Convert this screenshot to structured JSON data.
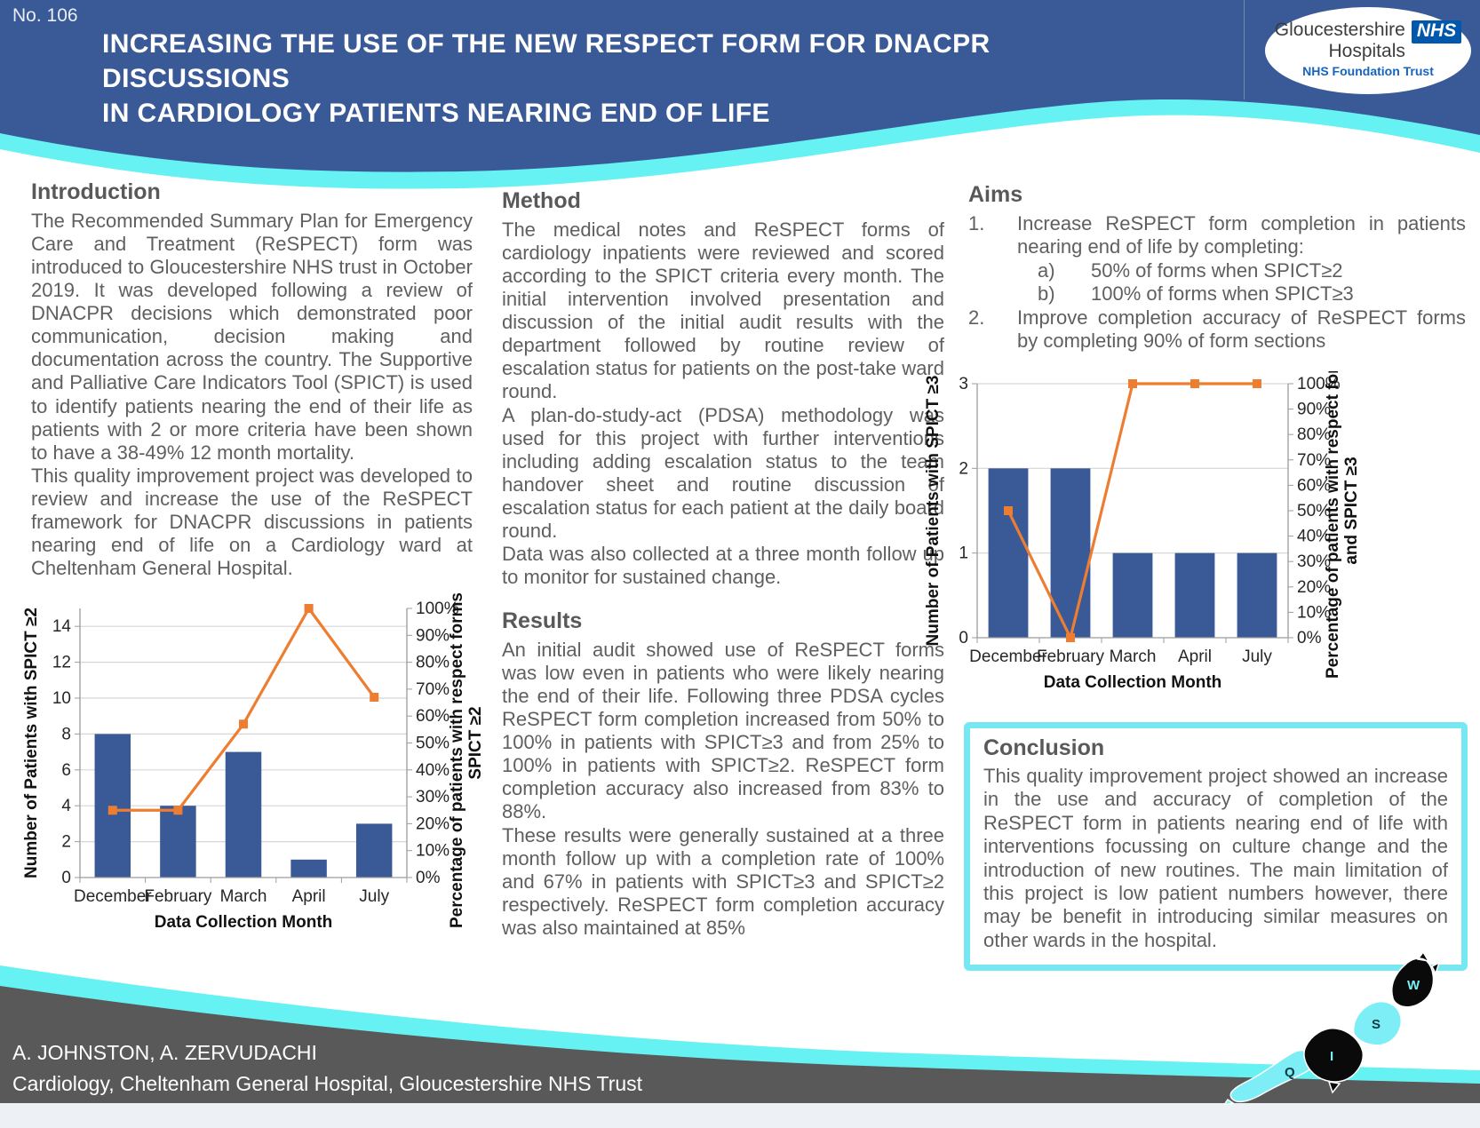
{
  "header": {
    "number": "No. 106",
    "title_line1": "INCREASING THE USE OF THE NEW RESPECT FORM FOR DNACPR DISCUSSIONS",
    "title_line2": "IN CARDIOLOGY PATIENTS NEARING END OF LIFE",
    "bg_color": "#3a5a97",
    "wave_color": "#66f1f3"
  },
  "logo": {
    "org_line1": "Gloucestershire",
    "org_line2": "Hospitals",
    "nhs": "NHS",
    "sub": "NHS Foundation Trust"
  },
  "intro": {
    "heading": "Introduction",
    "p1": "The Recommended Summary Plan for Emergency Care and Treatment (ReSPECT) form was introduced to Gloucestershire NHS trust in October 2019. It was developed following a review of DNACPR decisions which demonstrated poor communication, decision making and documentation across the country. The Supportive and Palliative Care Indicators Tool (SPICT) is used to identify patients nearing the end of their life as patients with 2 or more criteria have been shown to have a 38-49% 12 month mortality.",
    "p2": "This quality improvement project was developed to review and increase the use of the ReSPECT framework for DNACPR discussions in patients nearing end of life on a Cardiology ward at Cheltenham General Hospital."
  },
  "method": {
    "heading": "Method",
    "p1": "The medical notes and ReSPECT forms of cardiology inpatients were reviewed and scored according to the SPICT criteria every month. The initial intervention involved presentation and discussion of the initial audit results with the department followed by routine review of escalation status for patients on the post-take ward round.",
    "p2": "A plan-do-study-act (PDSA) methodology was used for this project with further interventions including adding escalation status to the team handover sheet and routine discussion of escalation status for each patient at the daily board round.",
    "p3": "Data was also collected at a three month follow up to monitor for sustained change."
  },
  "results": {
    "heading": "Results",
    "p1": "An initial audit showed use of ReSPECT forms was low even in patients who were likely nearing the end of their life. Following three PDSA cycles ReSPECT form completion increased from 50% to 100% in patients with SPICT≥3 and from 25% to 100% in patients with SPICT≥2. ReSPECT form completion accuracy also increased from 83% to 88%.",
    "p2": "These results were generally sustained at a three month follow up with a completion rate of 100% and 67% in patients with SPICT≥3 and SPICT≥2 respectively. ReSPECT form completion accuracy was also maintained at 85%"
  },
  "aims": {
    "heading": "Aims",
    "items": [
      {
        "num": "1.",
        "text": "Increase ReSPECT form completion in patients nearing end of life by completing:",
        "subs": [
          {
            "num": "a)",
            "text": "50% of forms when SPICT≥2"
          },
          {
            "num": "b)",
            "text": "100% of forms when SPICT≥3"
          }
        ]
      },
      {
        "num": "2.",
        "text": "Improve completion accuracy of ReSPECT forms by completing 90% of form sections",
        "subs": []
      }
    ]
  },
  "conclusion": {
    "heading": "Conclusion",
    "text": "This quality improvement project showed an increase in the use and accuracy of completion of the ReSPECT form in patients nearing end of life with interventions focussing on culture change and the introduction of new routines. The main limitation of this project is low patient numbers however, there may be benefit in introducing similar measures on other wards in the hospital.",
    "border_color": "#76e8f3"
  },
  "footer": {
    "authors": "A. JOHNSTON, A. ZERVUDACHI",
    "affiliation": "Cardiology, Cheltenham General Hospital, Gloucestershire NHS Trust",
    "bar_color": "#595959",
    "wave_color": "#66f1f3"
  },
  "map": {
    "letters": {
      "w": "W",
      "s": "S",
      "i": "I",
      "q": "Q"
    },
    "colors": {
      "cyan": "#7deef5",
      "black": "#0a0a0a"
    }
  },
  "chart_data": [
    {
      "type": "combo",
      "categories": [
        "December",
        "February",
        "March",
        "April",
        "July"
      ],
      "series": [
        {
          "name": "Number of Patients with SPICT ≥2",
          "type": "bar",
          "axis": "left",
          "values": [
            8,
            4,
            7,
            1,
            3
          ],
          "color": "#3a5a97"
        },
        {
          "name": "Percentage of patients with respect forms and SPICT ≥2",
          "type": "line",
          "axis": "right",
          "values": [
            25,
            25,
            57,
            100,
            67
          ],
          "color": "#ed7d31"
        }
      ],
      "title": "",
      "xlabel": "Data Collection Month",
      "ylabel": "Number of Patients with SPICT ≥2",
      "y2label": "Percentage of patients with respect forms and SPICT ≥2",
      "y2label_lines": [
        "Percentage of patients with respect forms and",
        "SPICT ≥2"
      ],
      "ylim": [
        0,
        15
      ],
      "yticks": [
        0,
        2,
        4,
        6,
        8,
        10,
        12,
        14
      ],
      "y2lim": [
        0,
        100
      ],
      "y2tick_step": 10,
      "grid": true,
      "legend": false
    },
    {
      "type": "combo",
      "categories": [
        "December",
        "February",
        "March",
        "April",
        "July"
      ],
      "series": [
        {
          "name": "Number of Patients with SPICT ≥3",
          "type": "bar",
          "axis": "left",
          "values": [
            2,
            2,
            1,
            1,
            1
          ],
          "color": "#3a5a97"
        },
        {
          "name": "Percentage of patients with respect forms and SPICT ≥3",
          "type": "line",
          "axis": "right",
          "values": [
            50,
            0,
            100,
            100,
            100
          ],
          "color": "#ed7d31"
        }
      ],
      "title": "",
      "xlabel": "Data Collection Month",
      "ylabel": "Number of Patients with SPICT ≥3",
      "y2label": "Percentage of patients with respect forms and SPICT ≥3",
      "y2label_lines": [
        "Percentage of patients with respect forms",
        "and SPICT ≥3"
      ],
      "ylim": [
        0,
        3
      ],
      "yticks": [
        0,
        1,
        2,
        3
      ],
      "y2lim": [
        0,
        100
      ],
      "y2tick_step": 10,
      "grid": true,
      "legend": false
    }
  ]
}
